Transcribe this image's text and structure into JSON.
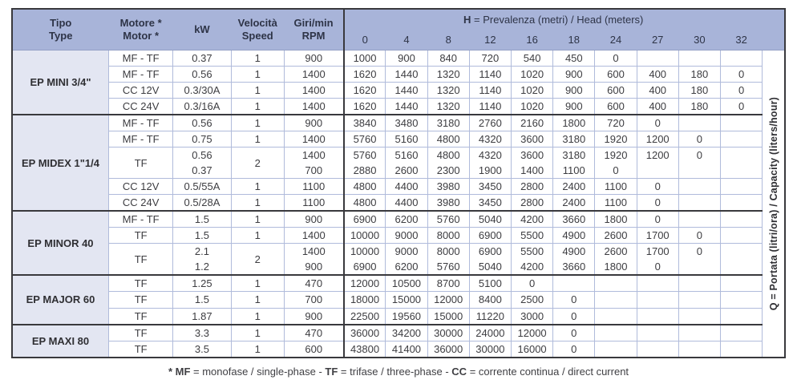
{
  "colors": {
    "header_bg": "#a8b4d9",
    "group_bg": "#e3e6f2",
    "grid": "#b0bbdb",
    "dark_border": "#39393d"
  },
  "table": {
    "left_columns": [
      {
        "lines": [
          "Tipo",
          "Type"
        ]
      },
      {
        "lines": [
          "Motore *",
          "Motor *"
        ]
      },
      {
        "lines": [
          "kW"
        ]
      },
      {
        "lines": [
          "Velocità",
          "Speed"
        ]
      },
      {
        "lines": [
          "Giri/min",
          "RPM"
        ]
      }
    ],
    "h_header": {
      "prefix": "H",
      "rest": " = Prevalenza (metri) / Head (meters)"
    },
    "h_values": [
      "0",
      "4",
      "8",
      "12",
      "16",
      "18",
      "24",
      "27",
      "30",
      "32"
    ],
    "q_label": {
      "prefix": "Q",
      "rest": " = Portata (litri/ora) / Capacity (liters/hour)"
    },
    "groups": [
      {
        "name": "EP MINI 3/4\"",
        "rows": [
          {
            "motor": "MF - TF",
            "kw": "0.37",
            "speed": "1",
            "rpm": "900",
            "q": [
              "1000",
              "900",
              "840",
              "720",
              "540",
              "450",
              "0",
              "",
              "",
              ""
            ]
          },
          {
            "motor": "MF - TF",
            "kw": "0.56",
            "speed": "1",
            "rpm": "1400",
            "q": [
              "1620",
              "1440",
              "1320",
              "1140",
              "1020",
              "900",
              "600",
              "400",
              "180",
              "0"
            ]
          },
          {
            "motor": "CC 12V",
            "kw": "0.3/30A",
            "speed": "1",
            "rpm": "1400",
            "q": [
              "1620",
              "1440",
              "1320",
              "1140",
              "1020",
              "900",
              "600",
              "400",
              "180",
              "0"
            ]
          },
          {
            "motor": "CC 24V",
            "kw": "0.3/16A",
            "speed": "1",
            "rpm": "1400",
            "q": [
              "1620",
              "1440",
              "1320",
              "1140",
              "1020",
              "900",
              "600",
              "400",
              "180",
              "0"
            ]
          }
        ]
      },
      {
        "name": "EP MIDEX 1\"1/4",
        "rows": [
          {
            "motor": "MF - TF",
            "kw": "0.56",
            "speed": "1",
            "rpm": "900",
            "q": [
              "3840",
              "3480",
              "3180",
              "2760",
              "2160",
              "1800",
              "720",
              "0",
              "",
              ""
            ]
          },
          {
            "motor": "MF - TF",
            "kw": "0.75",
            "speed": "1",
            "rpm": "1400",
            "q": [
              "5760",
              "5160",
              "4800",
              "4320",
              "3600",
              "3180",
              "1920",
              "1200",
              "0",
              ""
            ]
          },
          {
            "motor": "TF",
            "motor_rowspan": 2,
            "kw": "0.56",
            "speed": "2",
            "speed_rowspan": 2,
            "rpm": "1400",
            "merged_with_next": true,
            "q": [
              "5760",
              "5160",
              "4800",
              "4320",
              "3600",
              "3180",
              "1920",
              "1200",
              "0",
              ""
            ]
          },
          {
            "motor": null,
            "kw": "0.37",
            "speed": null,
            "rpm": "700",
            "q": [
              "2880",
              "2600",
              "2300",
              "1900",
              "1400",
              "1100",
              "0",
              "",
              "",
              ""
            ]
          },
          {
            "motor": "CC 12V",
            "kw": "0.5/55A",
            "speed": "1",
            "rpm": "1100",
            "q": [
              "4800",
              "4400",
              "3980",
              "3450",
              "2800",
              "2400",
              "1100",
              "0",
              "",
              ""
            ]
          },
          {
            "motor": "CC 24V",
            "kw": "0.5/28A",
            "speed": "1",
            "rpm": "1100",
            "q": [
              "4800",
              "4400",
              "3980",
              "3450",
              "2800",
              "2400",
              "1100",
              "0",
              "",
              ""
            ]
          }
        ]
      },
      {
        "name": "EP MINOR 40",
        "rows": [
          {
            "motor": "MF - TF",
            "kw": "1.5",
            "speed": "1",
            "rpm": "900",
            "q": [
              "6900",
              "6200",
              "5760",
              "5040",
              "4200",
              "3660",
              "1800",
              "0",
              "",
              ""
            ]
          },
          {
            "motor": "TF",
            "kw": "1.5",
            "speed": "1",
            "rpm": "1400",
            "q": [
              "10000",
              "9000",
              "8000",
              "6900",
              "5500",
              "4900",
              "2600",
              "1700",
              "0",
              ""
            ]
          },
          {
            "motor": "TF",
            "motor_rowspan": 2,
            "kw": "2.1",
            "speed": "2",
            "speed_rowspan": 2,
            "rpm": "1400",
            "merged_with_next": true,
            "q": [
              "10000",
              "9000",
              "8000",
              "6900",
              "5500",
              "4900",
              "2600",
              "1700",
              "0",
              ""
            ]
          },
          {
            "motor": null,
            "kw": "1.2",
            "speed": null,
            "rpm": "900",
            "q": [
              "6900",
              "6200",
              "5760",
              "5040",
              "4200",
              "3660",
              "1800",
              "0",
              "",
              ""
            ]
          }
        ]
      },
      {
        "name": "EP MAJOR 60",
        "rows": [
          {
            "motor": "TF",
            "kw": "1.25",
            "speed": "1",
            "rpm": "470",
            "q": [
              "12000",
              "10500",
              "8700",
              "5100",
              "0",
              "",
              "",
              "",
              "",
              ""
            ]
          },
          {
            "motor": "TF",
            "kw": "1.5",
            "speed": "1",
            "rpm": "700",
            "q": [
              "18000",
              "15000",
              "12000",
              "8400",
              "2500",
              "0",
              "",
              "",
              "",
              ""
            ]
          },
          {
            "motor": "TF",
            "kw": "1.87",
            "speed": "1",
            "rpm": "900",
            "q": [
              "22500",
              "19560",
              "15000",
              "11220",
              "3000",
              "0",
              "",
              "",
              "",
              ""
            ]
          }
        ]
      },
      {
        "name": "EP MAXI 80",
        "rows": [
          {
            "motor": "TF",
            "kw": "3.3",
            "speed": "1",
            "rpm": "470",
            "q": [
              "36000",
              "34200",
              "30000",
              "24000",
              "12000",
              "0",
              "",
              "",
              "",
              ""
            ]
          },
          {
            "motor": "TF",
            "kw": "3.5",
            "speed": "1",
            "rpm": "600",
            "q": [
              "43800",
              "41400",
              "36000",
              "30000",
              "16000",
              "0",
              "",
              "",
              "",
              ""
            ]
          }
        ]
      }
    ]
  },
  "footnote": {
    "segments": [
      {
        "bold": "* MF",
        "text": " = monofase / single-phase - "
      },
      {
        "bold": "TF",
        "text": " = trifase / three-phase - "
      },
      {
        "bold": "CC",
        "text": " = corrente continua / direct current"
      }
    ]
  }
}
